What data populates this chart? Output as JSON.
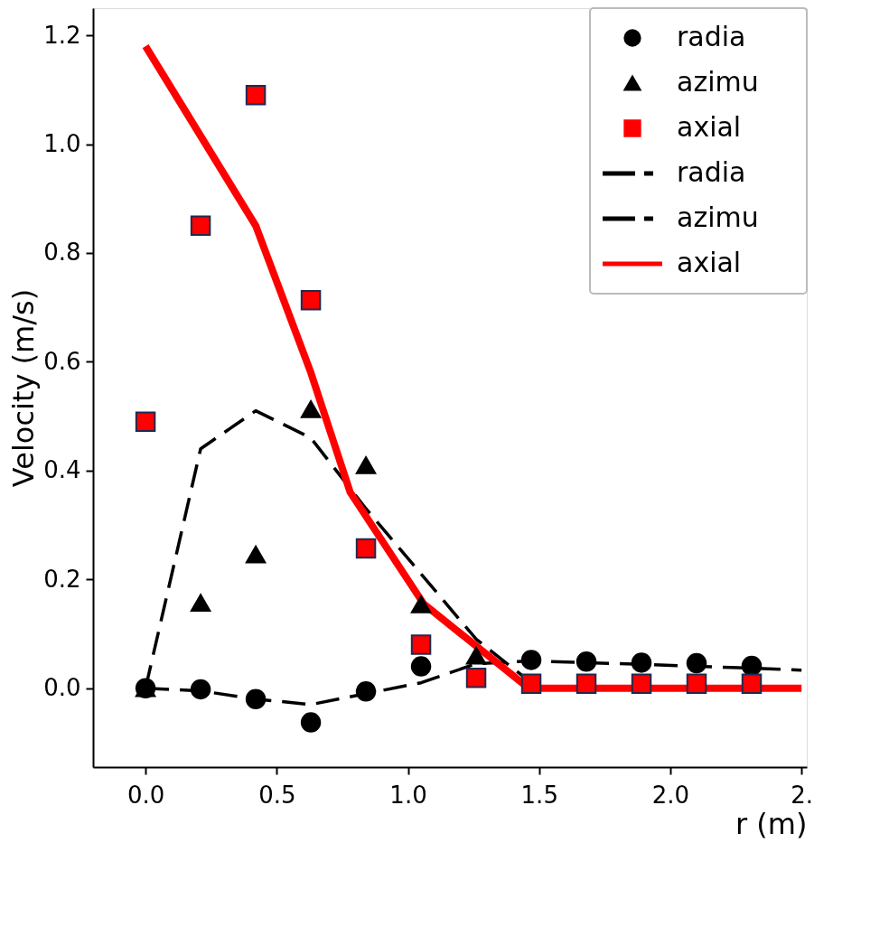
{
  "chart_data": {
    "type": "scatter",
    "xlabel": "r (m)",
    "ylabel": "Velocity (m/s)",
    "xlim": [
      -0.2,
      2.52
    ],
    "ylim": [
      -0.145,
      1.25
    ],
    "xticks": [
      {
        "value": 0,
        "label": "0.0"
      },
      0.5,
      {
        "value": 1,
        "label": "1.0"
      },
      1.5,
      {
        "value": 2,
        "label": "2.0"
      },
      {
        "value": 2.5,
        "label": "2."
      }
    ],
    "yticks": [
      {
        "value": 0,
        "label": "0.0"
      },
      0.2,
      0.4,
      0.6,
      0.8,
      {
        "value": 1,
        "label": "1.0"
      },
      1.2
    ],
    "legend": "top right",
    "grid": false,
    "series": [
      {
        "name": "radia",
        "marker": "circle",
        "color": "#000000",
        "x": [
          0,
          0.21,
          0.42,
          0.63,
          0.84,
          1.05,
          1.26,
          1.47,
          1.68,
          1.89,
          2.1,
          2.31
        ],
        "values": [
          0.0,
          -0.002,
          -0.02,
          -0.063,
          -0.006,
          0.04,
          null,
          0.052,
          0.049,
          0.047,
          0.046,
          0.041
        ]
      },
      {
        "name": "azimu",
        "marker": "triangle",
        "color": "#000000",
        "x": [
          0,
          0.21,
          0.42,
          0.63,
          0.84,
          1.05,
          1.26
        ],
        "values": [
          0.0,
          0.157,
          0.246,
          0.513,
          0.41,
          0.154,
          0.06
        ]
      },
      {
        "name": "axial",
        "marker": "square",
        "color": "#ff0000",
        "x": [
          0,
          0.21,
          0.42,
          0.63,
          0.84,
          1.05,
          1.26,
          1.47,
          1.68,
          1.89,
          2.1,
          2.31
        ],
        "values": [
          0.49,
          0.85,
          1.09,
          0.713,
          0.257,
          0.08,
          0.019,
          0.008,
          0.008,
          0.008,
          0.008,
          0.008
        ]
      },
      {
        "name": "radia",
        "type": "line",
        "line_style": "dashed",
        "color": "#000000",
        "x": [
          0,
          0.21,
          0.42,
          0.63,
          0.84,
          1.05,
          1.26,
          1.47,
          1.68,
          1.89,
          2.1,
          2.31,
          2.5
        ],
        "values": [
          0.0,
          -0.005,
          -0.02,
          -0.03,
          -0.01,
          0.01,
          0.045,
          0.05,
          0.047,
          0.044,
          0.04,
          0.037,
          0.033
        ]
      },
      {
        "name": "azimu",
        "type": "line",
        "line_style": "dashed",
        "color": "#000000",
        "x": [
          0,
          0.21,
          0.42,
          0.63,
          0.84,
          1.05,
          1.26,
          1.47
        ],
        "values": [
          0.0,
          0.44,
          0.51,
          0.46,
          0.33,
          0.21,
          0.09,
          0.01
        ]
      },
      {
        "name": "axial",
        "type": "line",
        "line_style": "solid",
        "color": "#ff0000",
        "x": [
          0,
          0.42,
          0.63,
          0.78,
          1.06,
          1.46,
          2.5
        ],
        "values": [
          1.18,
          0.85,
          0.58,
          0.36,
          0.155,
          0.0,
          0.0
        ]
      }
    ]
  }
}
